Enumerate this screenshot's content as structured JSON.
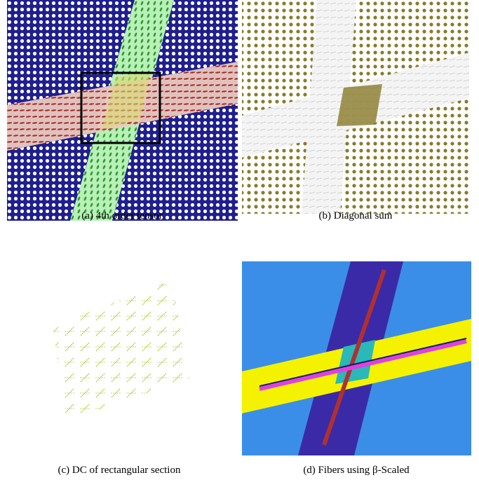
{
  "figures": [
    {
      "caption": "(a) 4th order tensor"
    },
    {
      "caption": "(b) Diagonal sum"
    },
    {
      "caption": "(c) DC of rectangular section"
    },
    {
      "caption": "(d) Fibers using β-Scaled"
    }
  ]
}
